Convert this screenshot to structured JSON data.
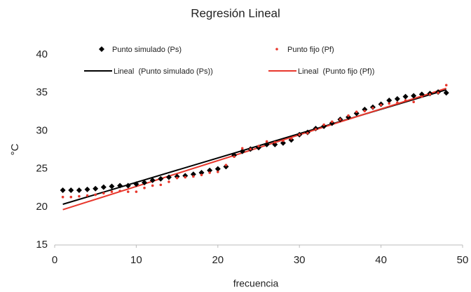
{
  "chart_data": {
    "type": "scatter",
    "title": "Regresión Lineal",
    "x_label": "frecuencia",
    "y_label": "°C",
    "x": [
      1,
      2,
      3,
      4,
      5,
      6,
      7,
      8,
      9,
      10,
      11,
      12,
      13,
      14,
      15,
      16,
      17,
      18,
      19,
      20,
      21,
      22,
      23,
      24,
      25,
      26,
      27,
      28,
      29,
      30,
      31,
      32,
      33,
      34,
      35,
      36,
      37,
      38,
      39,
      40,
      41,
      42,
      43,
      44,
      45,
      46,
      47,
      48
    ],
    "series": [
      {
        "name": "Punto simulado (Ps)",
        "color": "#000000",
        "marker": "diamond",
        "values": [
          22.2,
          22.2,
          22.2,
          22.3,
          22.4,
          22.6,
          22.7,
          22.8,
          22.8,
          23.0,
          23.2,
          23.5,
          23.7,
          23.9,
          24.0,
          24.1,
          24.3,
          24.5,
          24.8,
          25.0,
          25.3,
          26.8,
          27.3,
          27.6,
          27.8,
          28.2,
          28.2,
          28.4,
          28.8,
          29.5,
          29.8,
          30.3,
          30.6,
          31.0,
          31.5,
          31.8,
          32.3,
          32.8,
          33.1,
          33.5,
          34.0,
          34.2,
          34.5,
          34.6,
          34.8,
          34.9,
          35.1,
          35.0
        ]
      },
      {
        "name": "Punto fijo (Pf)",
        "color": "#e8372c",
        "marker": "dot",
        "values": [
          21.3,
          21.3,
          21.4,
          21.5,
          21.6,
          21.8,
          22.0,
          22.1,
          22.0,
          22.0,
          22.5,
          22.8,
          22.9,
          23.3,
          23.8,
          23.9,
          24.0,
          24.2,
          24.5,
          24.6,
          25.5,
          26.6,
          27.7,
          27.6,
          28.0,
          28.6,
          28.5,
          28.7,
          29.0,
          29.5,
          29.7,
          30.2,
          30.8,
          31.2,
          31.5,
          32.0,
          32.5,
          32.6,
          33.0,
          33.4,
          33.6,
          33.7,
          34.0,
          33.8,
          34.5,
          34.8,
          35.0,
          36.0
        ]
      }
    ],
    "trendlines": [
      {
        "name": "Lineal  (Punto simulado (Ps))",
        "color": "#000000",
        "of": 0
      },
      {
        "name": "Lineal  (Punto fijo (Pf))",
        "color": "#e8372c",
        "of": 1
      }
    ],
    "xlim": [
      0,
      50
    ],
    "xticks": [
      0,
      10,
      20,
      30,
      40,
      50
    ],
    "ylim": [
      15,
      40
    ],
    "yticks": [
      15,
      20,
      25,
      30,
      35,
      40
    ]
  }
}
